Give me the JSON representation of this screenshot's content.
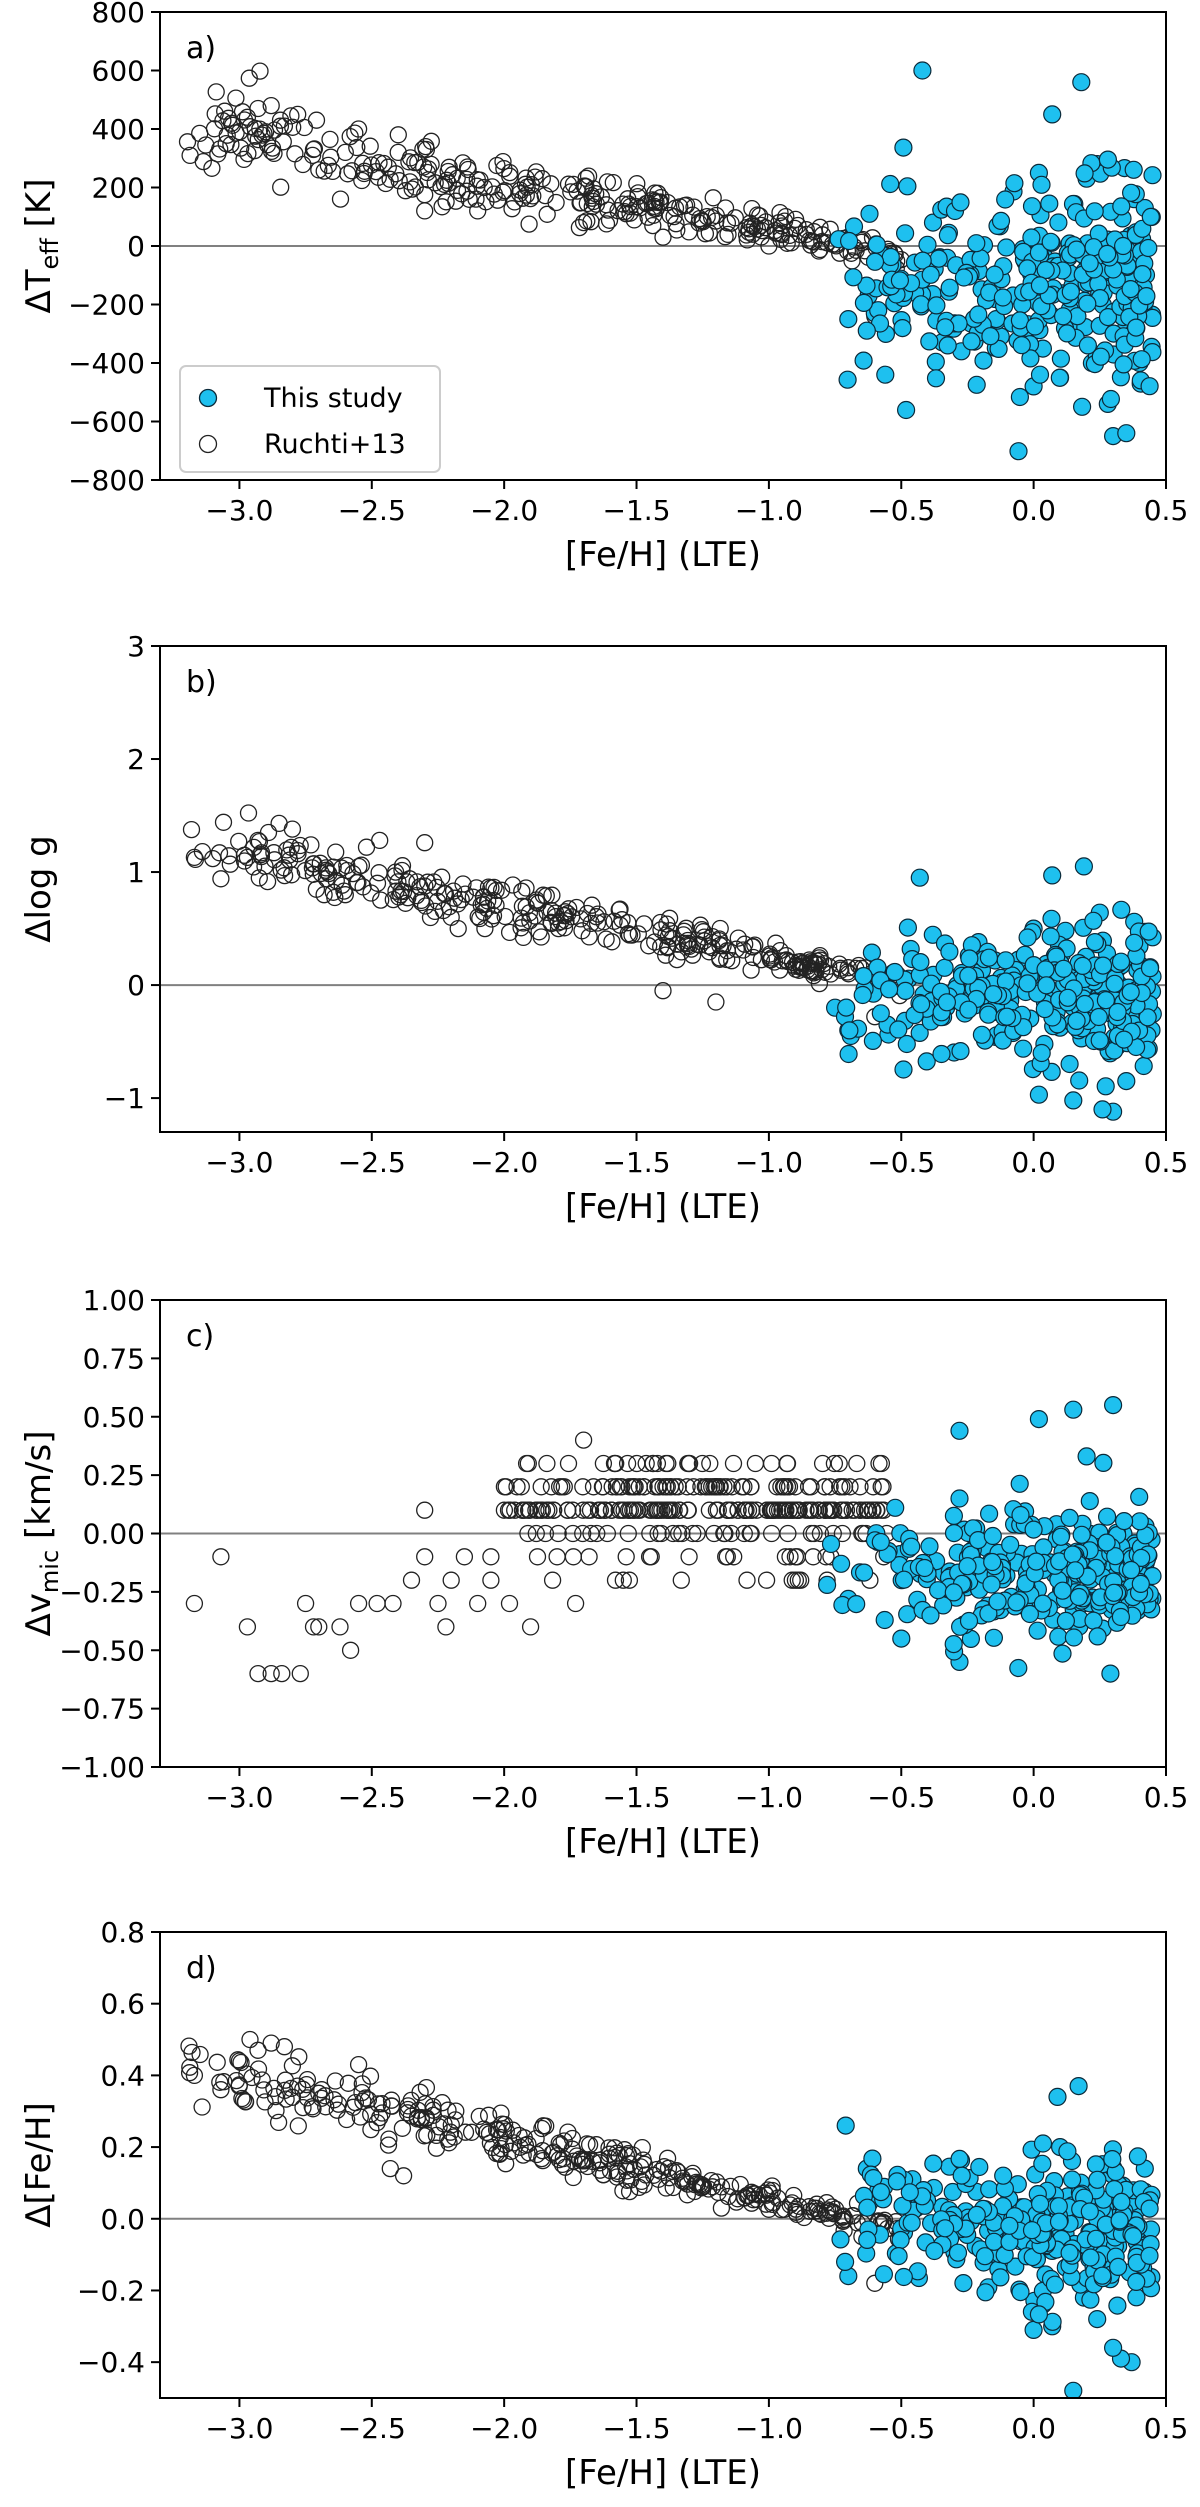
{
  "chart_data": [
    {
      "type": "scatter",
      "panel_label": "a)",
      "xlabel": "[Fe/H] (LTE)",
      "ylabel": "ΔT",
      "ylabel_sub": "eff",
      "ylabel_suffix": " [K]",
      "xlim": [
        -3.3,
        0.5
      ],
      "ylim": [
        -800,
        800
      ],
      "xticks": [
        -3.0,
        -2.5,
        -2.0,
        -1.5,
        -1.0,
        -0.5,
        0.0,
        0.5
      ],
      "xtick_labels": [
        "−3.0",
        "−2.5",
        "−2.0",
        "−1.5",
        "−1.0",
        "−0.5",
        "0.0",
        "0.5"
      ],
      "yticks": [
        -800,
        -600,
        -400,
        -200,
        0,
        200,
        400,
        600,
        800
      ],
      "ytick_labels": [
        "−800",
        "−600",
        "−400",
        "−200",
        "0",
        "200",
        "400",
        "600",
        "800"
      ],
      "legend": {
        "location": "lower-left",
        "entries": [
          "This study",
          "Ruchti+13"
        ]
      },
      "zero_line": 0,
      "series": [
        {
          "name": "Ruchti+13",
          "marker": "open-circle",
          "trend": {
            "x0": -3.15,
            "y0": 400,
            "x1": -0.5,
            "y1": -30,
            "spread": 140,
            "n": 320,
            "seed": 11,
            "xmin": -3.2,
            "xmax": -0.5
          },
          "points": [
            [
              -3.15,
              385
            ],
            [
              -3.05,
              350
            ],
            [
              -2.97,
              440
            ],
            [
              -2.93,
              470
            ],
            [
              -2.88,
              480
            ],
            [
              -2.83,
              410
            ],
            [
              -2.78,
              450
            ],
            [
              -2.72,
              330
            ],
            [
              -2.7,
              260
            ],
            [
              -2.6,
              320
            ],
            [
              -2.55,
              400
            ],
            [
              -2.4,
              380
            ],
            [
              -2.3,
              120
            ],
            [
              -2.1,
              120
            ],
            [
              -1.7,
              80
            ],
            [
              -1.4,
              30
            ],
            [
              -1.0,
              0
            ],
            [
              -0.6,
              -240
            ]
          ]
        },
        {
          "name": "This study",
          "marker": "filled-circle",
          "color": "#1ec0ef",
          "cloud": {
            "xmin": -0.8,
            "xmax": 0.45,
            "ymean": -120,
            "yspread": 160,
            "n": 340,
            "seed": 23
          },
          "points": [
            [
              -0.42,
              600
            ],
            [
              0.18,
              560
            ],
            [
              0.07,
              450
            ],
            [
              0.24,
              280
            ],
            [
              0.38,
              160
            ],
            [
              -0.7,
              -250
            ],
            [
              -0.6,
              -230
            ],
            [
              0.0,
              -480
            ],
            [
              0.1,
              -450
            ],
            [
              0.28,
              -540
            ],
            [
              0.3,
              -650
            ],
            [
              0.35,
              -640
            ],
            [
              0.22,
              -400
            ],
            [
              0.4,
              -400
            ],
            [
              -0.2,
              -280
            ],
            [
              -0.62,
              110
            ],
            [
              -0.38,
              80
            ],
            [
              0.2,
              230
            ],
            [
              0.02,
              250
            ],
            [
              0.42,
              130
            ]
          ]
        }
      ]
    },
    {
      "type": "scatter",
      "panel_label": "b)",
      "xlabel": "[Fe/H] (LTE)",
      "ylabel": "Δlog g",
      "xlim": [
        -3.3,
        0.5
      ],
      "ylim": [
        -1.3,
        3
      ],
      "xticks": [
        -3.0,
        -2.5,
        -2.0,
        -1.5,
        -1.0,
        -0.5,
        0.0,
        0.5
      ],
      "xtick_labels": [
        "−3.0",
        "−2.5",
        "−2.0",
        "−1.5",
        "−1.0",
        "−0.5",
        "0.0",
        "0.5"
      ],
      "yticks": [
        -1,
        0,
        1,
        2,
        3
      ],
      "ytick_labels": [
        "−1",
        "0",
        "1",
        "2",
        "3"
      ],
      "zero_line": 0,
      "series": [
        {
          "name": "Ruchti+13",
          "marker": "open-circle",
          "trend": {
            "x0": -3.15,
            "y0": 1.2,
            "x1": -0.5,
            "y1": 0.02,
            "spread": 0.28,
            "n": 330,
            "seed": 37,
            "xmin": -3.2,
            "xmax": -0.5
          },
          "points": [
            [
              -3.17,
              1.13
            ],
            [
              -3.07,
              0.94
            ],
            [
              -2.97,
              1.13
            ],
            [
              -2.93,
              1.28
            ],
            [
              -2.89,
              1.35
            ],
            [
              -2.85,
              1.43
            ],
            [
              -2.8,
              1.38
            ],
            [
              -2.73,
              1.24
            ],
            [
              -2.68,
              0.8
            ],
            [
              -2.6,
              0.8
            ],
            [
              -2.52,
              1.22
            ],
            [
              -2.47,
              1.28
            ],
            [
              -2.3,
              1.26
            ],
            [
              -2.2,
              0.6
            ],
            [
              -1.4,
              -0.05
            ],
            [
              -1.2,
              -0.15
            ],
            [
              -0.6,
              -0.28
            ]
          ]
        },
        {
          "name": "This study",
          "marker": "filled-circle",
          "color": "#1ec0ef",
          "cloud": {
            "xmin": -0.8,
            "xmax": 0.45,
            "ymean": -0.1,
            "yspread": 0.28,
            "n": 340,
            "seed": 53
          },
          "points": [
            [
              -0.43,
              0.95
            ],
            [
              0.07,
              0.97
            ],
            [
              0.19,
              1.05
            ],
            [
              0.25,
              0.64
            ],
            [
              0.38,
              0.56
            ],
            [
              0.42,
              0.47
            ],
            [
              0.3,
              -1.12
            ],
            [
              0.26,
              -1.1
            ],
            [
              0.15,
              -1.02
            ],
            [
              0.02,
              -0.97
            ],
            [
              -0.7,
              -0.4
            ],
            [
              -0.75,
              -0.2
            ],
            [
              0.35,
              -0.85
            ],
            [
              0.0,
              0.5
            ],
            [
              0.12,
              0.48
            ]
          ]
        }
      ]
    },
    {
      "type": "scatter",
      "panel_label": "c)",
      "xlabel": "[Fe/H] (LTE)",
      "ylabel": "Δv",
      "ylabel_sub": "mic",
      "ylabel_suffix": " [km/s]",
      "xlim": [
        -3.3,
        0.5
      ],
      "ylim": [
        -1.0,
        1.0
      ],
      "xticks": [
        -3.0,
        -2.5,
        -2.0,
        -1.5,
        -1.0,
        -0.5,
        0.0,
        0.5
      ],
      "xtick_labels": [
        "−3.0",
        "−2.5",
        "−2.0",
        "−1.5",
        "−1.0",
        "−0.5",
        "0.0",
        "0.5"
      ],
      "yticks": [
        -1.0,
        -0.75,
        -0.5,
        -0.25,
        0.0,
        0.25,
        0.5,
        0.75,
        1.0
      ],
      "ytick_labels": [
        "−1.00",
        "−0.75",
        "−0.50",
        "−0.25",
        "0.00",
        "0.25",
        "0.50",
        "0.75",
        "1.00"
      ],
      "zero_line": 0,
      "series": [
        {
          "name": "Ruchti+13",
          "marker": "open-circle",
          "quantized": {
            "xmin": -2.0,
            "xmax": -0.55,
            "levels": [
              0.3,
              0.2,
              0.1,
              0.0,
              -0.1,
              -0.2
            ],
            "weights": [
              0.08,
              0.27,
              0.4,
              0.15,
              0.06,
              0.04
            ],
            "n": 300,
            "seed": 71
          },
          "points": [
            [
              -3.17,
              -0.3
            ],
            [
              -3.07,
              -0.1
            ],
            [
              -2.97,
              -0.4
            ],
            [
              -2.93,
              -0.6
            ],
            [
              -2.88,
              -0.6
            ],
            [
              -2.84,
              -0.6
            ],
            [
              -2.77,
              -0.6
            ],
            [
              -2.75,
              -0.3
            ],
            [
              -2.72,
              -0.4
            ],
            [
              -2.7,
              -0.4
            ],
            [
              -2.62,
              -0.4
            ],
            [
              -2.58,
              -0.5
            ],
            [
              -2.55,
              -0.3
            ],
            [
              -2.48,
              -0.3
            ],
            [
              -2.42,
              -0.3
            ],
            [
              -2.35,
              -0.2
            ],
            [
              -2.3,
              0.1
            ],
            [
              -2.3,
              -0.1
            ],
            [
              -2.25,
              -0.3
            ],
            [
              -2.22,
              -0.4
            ],
            [
              -2.2,
              -0.2
            ],
            [
              -2.15,
              -0.1
            ],
            [
              -2.1,
              -0.3
            ],
            [
              -2.05,
              -0.2
            ],
            [
              -2.05,
              -0.1
            ],
            [
              -1.98,
              -0.3
            ],
            [
              -1.9,
              -0.4
            ],
            [
              -1.8,
              -0.1
            ],
            [
              -1.73,
              -0.3
            ],
            [
              -1.7,
              0.4
            ],
            [
              -1.55,
              -0.2
            ],
            [
              -1.45,
              0.0
            ],
            [
              -0.9,
              -0.2
            ],
            [
              -0.88,
              -0.2
            ],
            [
              -0.9,
              -0.1
            ]
          ]
        },
        {
          "name": "This study",
          "marker": "filled-circle",
          "color": "#1ec0ef",
          "cloud": {
            "xmin": -0.8,
            "xmax": 0.45,
            "ymean": -0.18,
            "yspread": 0.13,
            "n": 320,
            "seed": 89
          },
          "points": [
            [
              0.3,
              0.55
            ],
            [
              0.15,
              0.53
            ],
            [
              0.02,
              0.49
            ],
            [
              -0.28,
              0.44
            ],
            [
              0.2,
              0.33
            ],
            [
              -0.28,
              0.15
            ],
            [
              0.29,
              -0.6
            ],
            [
              -0.28,
              -0.55
            ],
            [
              -0.5,
              -0.45
            ],
            [
              -0.78,
              -0.22
            ],
            [
              -0.7,
              -0.28
            ],
            [
              0.4,
              -0.3
            ]
          ]
        }
      ]
    },
    {
      "type": "scatter",
      "panel_label": "d)",
      "xlabel": "[Fe/H] (LTE)",
      "ylabel": "Δ[Fe/H]",
      "xlim": [
        -3.3,
        0.5
      ],
      "ylim": [
        -0.5,
        0.8
      ],
      "xticks": [
        -3.0,
        -2.5,
        -2.0,
        -1.5,
        -1.0,
        -0.5,
        0.0,
        0.5
      ],
      "xtick_labels": [
        "−3.0",
        "−2.5",
        "−2.0",
        "−1.5",
        "−1.0",
        "−0.5",
        "0.0",
        "0.5"
      ],
      "yticks": [
        -0.4,
        -0.2,
        0.0,
        0.2,
        0.4,
        0.6,
        0.8
      ],
      "ytick_labels": [
        "−0.4",
        "−0.2",
        "0.0",
        "0.2",
        "0.4",
        "0.6",
        "0.8"
      ],
      "zero_line": 0,
      "series": [
        {
          "name": "Ruchti+13",
          "marker": "open-circle",
          "trend": {
            "x0": -3.15,
            "y0": 0.42,
            "x1": -0.5,
            "y1": -0.03,
            "spread": 0.09,
            "n": 330,
            "seed": 101,
            "xmin": -3.2,
            "xmax": -0.5
          },
          "points": [
            [
              -3.17,
              0.4
            ],
            [
              -3.07,
              0.36
            ],
            [
              -3.0,
              0.44
            ],
            [
              -2.96,
              0.5
            ],
            [
              -2.93,
              0.47
            ],
            [
              -2.88,
              0.49
            ],
            [
              -2.83,
              0.48
            ],
            [
              -2.78,
              0.37
            ],
            [
              -2.76,
              0.31
            ],
            [
              -2.7,
              0.35
            ],
            [
              -2.55,
              0.43
            ],
            [
              -2.43,
              0.14
            ],
            [
              -2.38,
              0.12
            ],
            [
              -0.6,
              -0.18
            ]
          ]
        },
        {
          "name": "This study",
          "marker": "filled-circle",
          "color": "#1ec0ef",
          "cloud": {
            "xmin": -0.8,
            "xmax": 0.45,
            "ymean": -0.02,
            "yspread": 0.09,
            "n": 330,
            "seed": 131
          },
          "points": [
            [
              -0.71,
              0.26
            ],
            [
              0.17,
              0.37
            ],
            [
              0.09,
              0.34
            ],
            [
              -0.63,
              0.14
            ],
            [
              0.15,
              -0.48
            ],
            [
              0.37,
              -0.4
            ],
            [
              0.33,
              -0.39
            ],
            [
              0.3,
              -0.36
            ],
            [
              0.0,
              -0.31
            ],
            [
              0.07,
              -0.3
            ],
            [
              0.24,
              -0.28
            ],
            [
              0.19,
              -0.22
            ],
            [
              -0.7,
              -0.16
            ],
            [
              0.42,
              0.14
            ],
            [
              0.1,
              0.2
            ]
          ]
        }
      ]
    }
  ]
}
